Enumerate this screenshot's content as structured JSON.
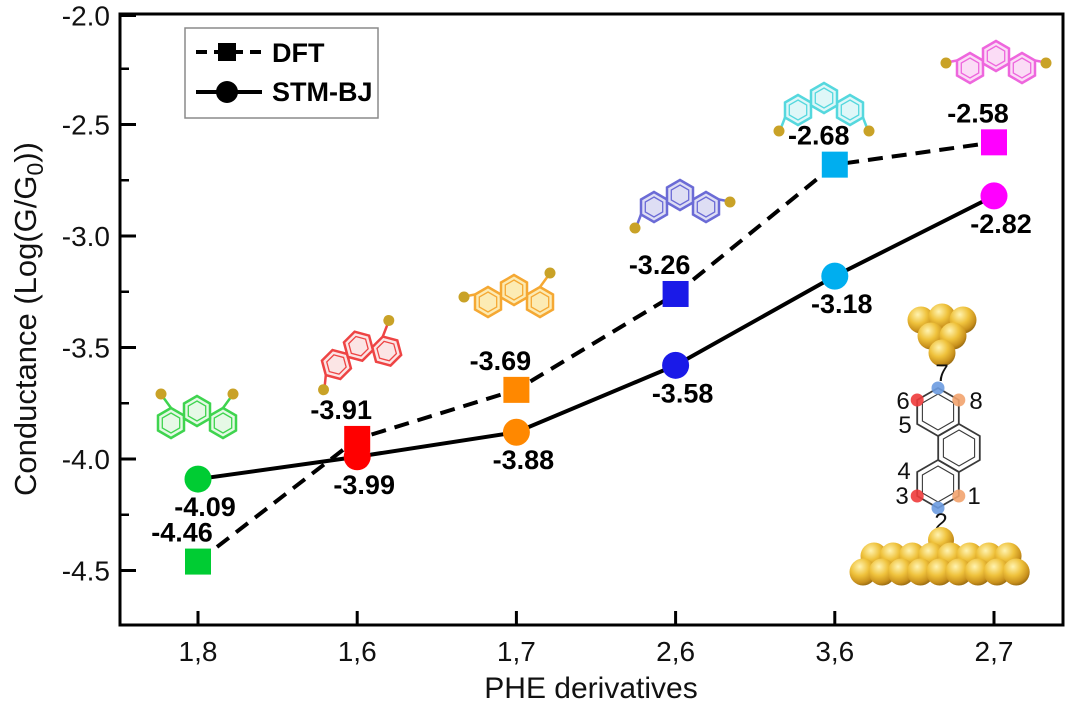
{
  "chart_data": {
    "type": "line",
    "title": "",
    "xlabel": "PHE derivatives",
    "ylabel": "Conductance (Log(G/G0))",
    "ylabel_parts": {
      "pre": "Conductance (Log(G/G",
      "sub": "0",
      "post": "))"
    },
    "categories": [
      "1,8",
      "1,6",
      "1,7",
      "2,6",
      "3,6",
      "2,7"
    ],
    "series": [
      {
        "name": "DFT",
        "marker": "square",
        "line_style": "dashed",
        "line_color": "#000000",
        "values": [
          -4.46,
          -3.91,
          -3.69,
          -3.26,
          -2.68,
          -2.58
        ],
        "point_labels": [
          "-4.46",
          "-3.91",
          "-3.69",
          "-3.26",
          "-2.68",
          "-2.58"
        ]
      },
      {
        "name": "STM-BJ",
        "marker": "circle",
        "line_style": "solid",
        "line_color": "#000000",
        "values": [
          -4.09,
          -3.99,
          -3.88,
          -3.58,
          -3.18,
          -2.82
        ],
        "point_labels": [
          "-4.09",
          "-3.99",
          "-3.88",
          "-3.58",
          "-3.18",
          "-2.82"
        ]
      }
    ],
    "point_colors": [
      "#00CC33",
      "#FF0000",
      "#FF8800",
      "#1A1AE8",
      "#00AEEF",
      "#FF00FF"
    ],
    "ylim": [
      -4.7,
      -2.0
    ],
    "ytick_labels": [
      "-2.0",
      "-2.5",
      "-3.0",
      "-3.5",
      "-4.0",
      "-4.5"
    ],
    "ytick_values": [
      -2.0,
      -2.5,
      -3.0,
      -3.5,
      -4.0,
      -4.5
    ],
    "yminor_values": [
      -2.25,
      -2.75,
      -3.25,
      -3.75,
      -4.25
    ],
    "grid": false,
    "legend_position": "top-left",
    "legend": [
      "DFT",
      "STM-BJ"
    ]
  },
  "molecule_glyphs": [
    {
      "label": "1,8",
      "stroke": "#3FD44F",
      "fill": "#E6F9E6"
    },
    {
      "label": "1,6",
      "stroke": "#EE4444",
      "fill": "#FBE5E5"
    },
    {
      "label": "1,7",
      "stroke": "#F5A833",
      "fill": "#FCEBB4"
    },
    {
      "label": "2,6",
      "stroke": "#6B6BD6",
      "fill": "#DEDEF4"
    },
    {
      "label": "3,6",
      "stroke": "#55D8DE",
      "fill": "#DFF7F8"
    },
    {
      "label": "2,7",
      "stroke": "#EE66DD",
      "fill": "#FBDCF6"
    }
  ],
  "junction_inset": {
    "site_numbers": [
      "7",
      "6",
      "8",
      "5",
      "4",
      "3",
      "1",
      "2"
    ],
    "site_dot_colors": {
      "7": "#6C9BE0",
      "6": "#EE3B3B",
      "8": "#F2A36E",
      "3": "#EE3B3B",
      "1": "#F2A36E",
      "2": "#6C9BE0"
    },
    "gold_color": "#E2B53A"
  },
  "colors": {
    "axis": "#000000",
    "gold_anchor": "#C9A227",
    "skeleton": "#3a3a3a",
    "legend_border": "#8a8a8a"
  }
}
